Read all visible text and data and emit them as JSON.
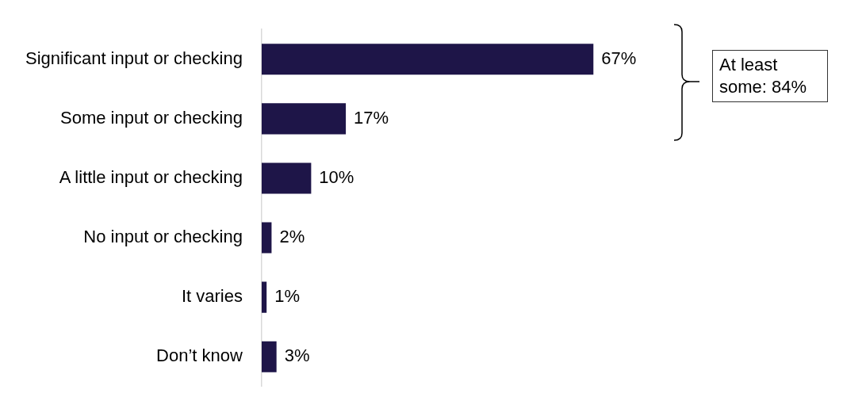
{
  "chart_data": {
    "type": "bar",
    "orientation": "horizontal",
    "categories": [
      "Significant input or checking",
      "Some input or checking",
      "A little input or checking",
      "No input or checking",
      "It varies",
      "Don’t know"
    ],
    "values": [
      67,
      17,
      10,
      2,
      1,
      3
    ],
    "value_labels": [
      "67%",
      "17%",
      "10%",
      "2%",
      "1%",
      "3%"
    ],
    "color": "#1e1548",
    "legend": false,
    "annotations": [
      "At least some: 84%"
    ]
  }
}
